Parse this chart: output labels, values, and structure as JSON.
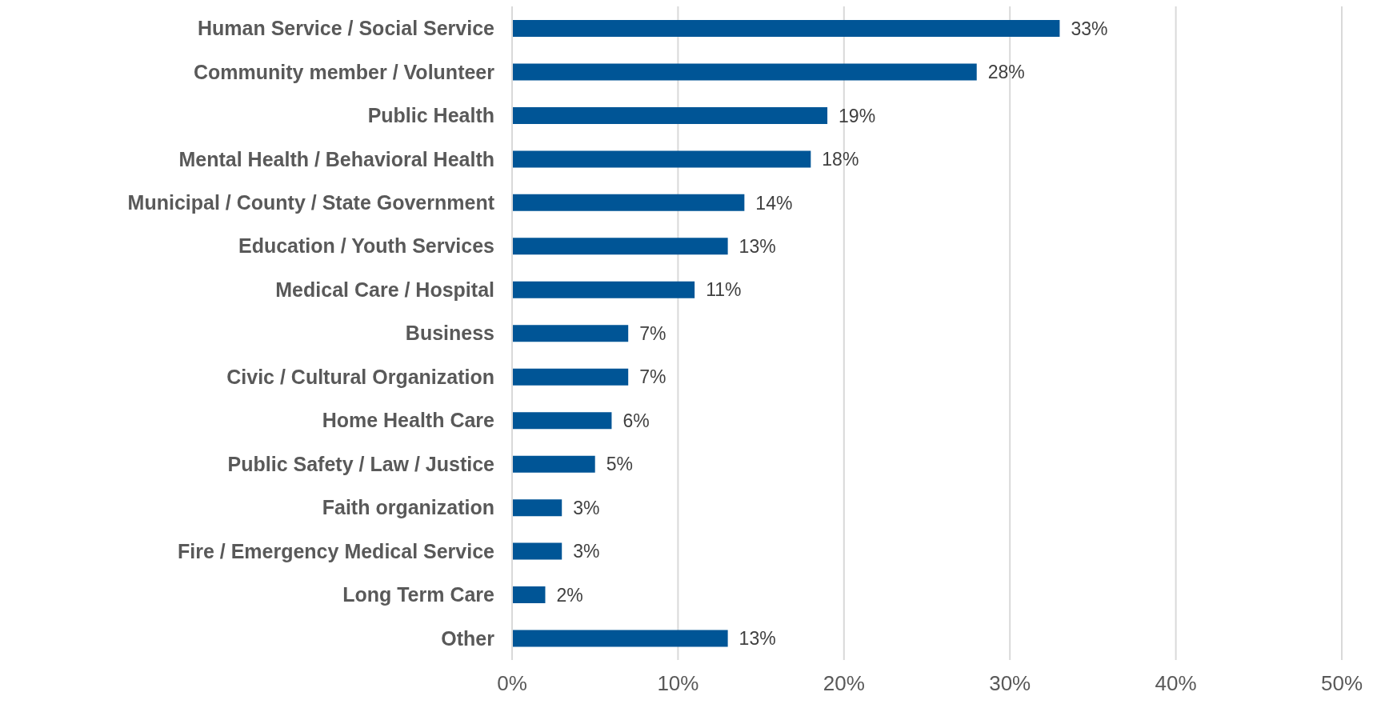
{
  "chart_data": {
    "type": "bar",
    "orientation": "horizontal",
    "categories": [
      "Human Service / Social Service",
      "Community member / Volunteer",
      "Public Health",
      "Mental Health / Behavioral Health",
      "Municipal / County / State Government",
      "Education / Youth Services",
      "Medical Care / Hospital",
      "Business",
      "Civic / Cultural Organization",
      "Home Health Care",
      "Public Safety / Law / Justice",
      "Faith organization",
      "Fire / Emergency Medical Service",
      "Long Term Care",
      "Other"
    ],
    "values": [
      33,
      28,
      19,
      18,
      14,
      13,
      11,
      7,
      7,
      6,
      5,
      3,
      3,
      2,
      13
    ],
    "value_labels": [
      "33%",
      "28%",
      "19%",
      "18%",
      "14%",
      "13%",
      "11%",
      "7%",
      "7%",
      "6%",
      "5%",
      "3%",
      "3%",
      "2%",
      "13%"
    ],
    "color": "#005596",
    "xlim": [
      0,
      50
    ],
    "xticks": [
      {
        "value": 0,
        "label": "0%"
      },
      {
        "value": 10,
        "label": "10%"
      },
      {
        "value": 20,
        "label": "20%"
      },
      {
        "value": 30,
        "label": "30%"
      },
      {
        "value": 40,
        "label": "40%"
      },
      {
        "value": 50,
        "label": "50%"
      }
    ],
    "grid": "x"
  }
}
